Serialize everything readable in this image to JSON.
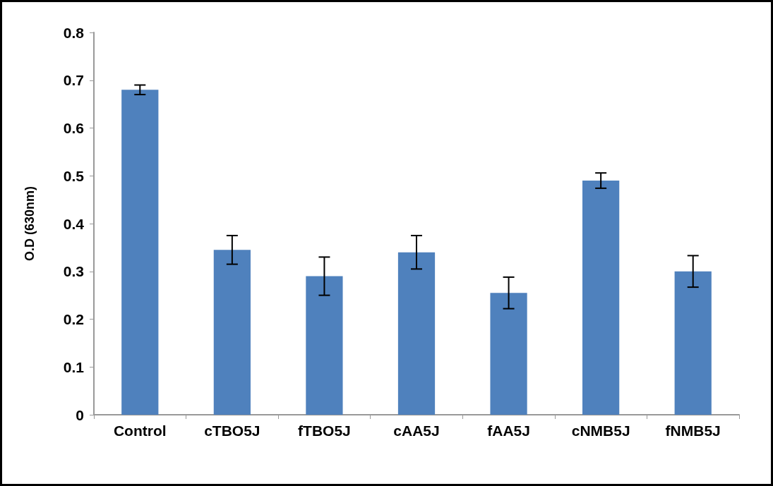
{
  "chart_data": {
    "type": "bar",
    "ylabel": "O.D (630nm)",
    "categories": [
      "Control",
      "cTBO5J",
      "fTBO5J",
      "cAA5J",
      "fAA5J",
      "cNMB5J",
      "fNMB5J"
    ],
    "values": [
      0.68,
      0.345,
      0.29,
      0.34,
      0.255,
      0.49,
      0.3
    ],
    "errors": [
      0.01,
      0.03,
      0.04,
      0.035,
      0.033,
      0.016,
      0.033
    ],
    "color": "#4f81bd",
    "ylim": [
      0,
      0.8
    ],
    "yticks": [
      0,
      0.1,
      0.2,
      0.3,
      0.4,
      0.5,
      0.6,
      0.7,
      0.8
    ],
    "grid": false
  }
}
